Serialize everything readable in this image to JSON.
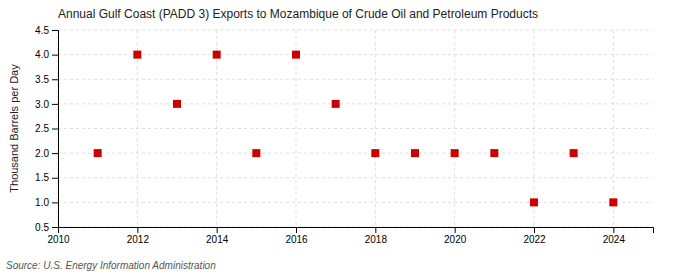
{
  "chart_data": {
    "type": "scatter",
    "title": "Annual Gulf Coast (PADD 3) Exports to Mozambique of Crude Oil and Petroleum Products",
    "ylabel": "Thousand Barrels per Day",
    "annotations": [
      "Source: U.S. Energy Information Administration"
    ],
    "x": [
      2011,
      2012,
      2013,
      2014,
      2015,
      2016,
      2017,
      2018,
      2019,
      2020,
      2021,
      2022,
      2023,
      2024
    ],
    "values": [
      2.0,
      4.0,
      3.0,
      4.0,
      2.0,
      4.0,
      3.0,
      2.0,
      2.0,
      2.0,
      2.0,
      1.0,
      2.0,
      1.0
    ],
    "color": "#CC0000",
    "marker": "square",
    "xlim": [
      2010,
      2025
    ],
    "xticks": [
      2010,
      2012,
      2014,
      2016,
      2018,
      2020,
      2022,
      2024
    ],
    "ylim": [
      0.5,
      4.5
    ],
    "yticks": [
      0.5,
      {
        "value": 1.0,
        "label": "1.0"
      },
      1.5,
      {
        "value": 2.0,
        "label": "2.0"
      },
      2.5,
      {
        "value": 3.0,
        "label": "3.0"
      },
      3.5,
      {
        "value": 4.0,
        "label": "4.0"
      },
      4.5
    ],
    "grid": true
  }
}
